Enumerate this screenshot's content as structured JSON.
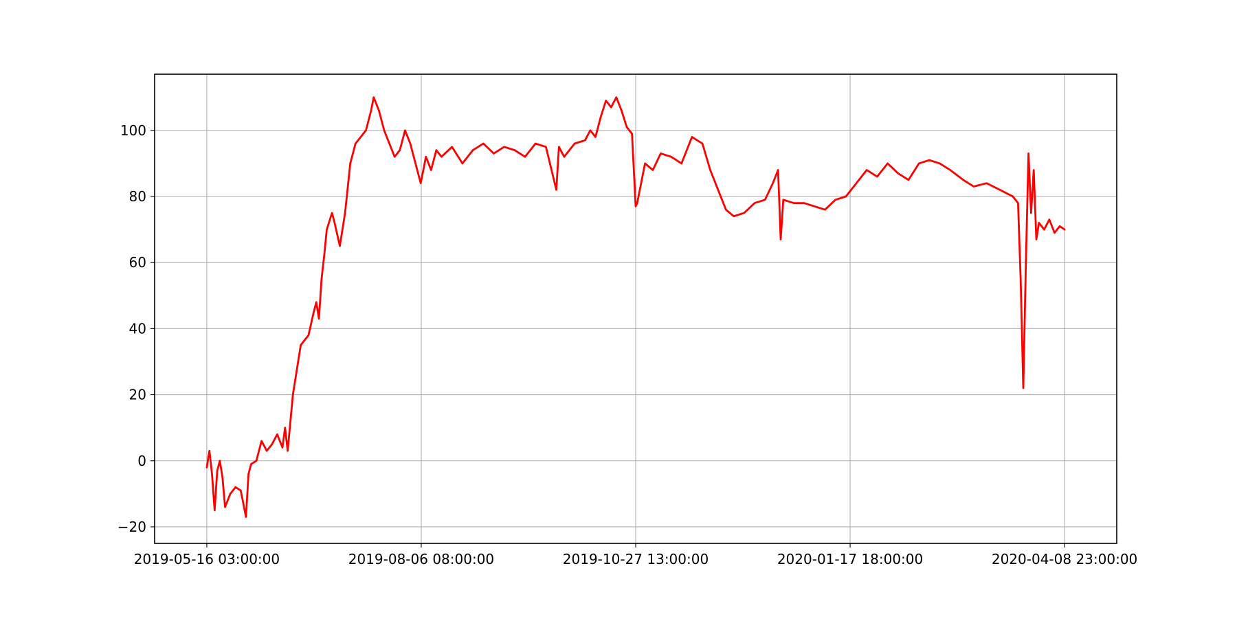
{
  "chart_data": {
    "type": "line",
    "title": "",
    "xlabel": "",
    "ylabel": "",
    "x_ticks": [
      "2019-05-16 03:00:00",
      "2019-08-06 08:00:00",
      "2019-10-27 13:00:00",
      "2020-01-17 18:00:00",
      "2020-04-08 23:00:00"
    ],
    "xlim": [
      "2019-04-26 03:00:00",
      "2020-04-28 23:00:00"
    ],
    "ylim": [
      -25,
      117
    ],
    "y_ticks": [
      -20,
      0,
      20,
      40,
      60,
      80,
      100
    ],
    "grid": true,
    "legend": "none",
    "series": [
      {
        "color": "#ff0000",
        "x": [
          "2019-05-16 03:00:00",
          "2019-05-17 03:00:00",
          "2019-05-18 03:00:00",
          "2019-05-19 03:00:00",
          "2019-05-20 03:00:00",
          "2019-05-21 03:00:00",
          "2019-05-22 03:00:00",
          "2019-05-23 03:00:00",
          "2019-05-25 03:00:00",
          "2019-05-27 03:00:00",
          "2019-05-29 03:00:00",
          "2019-05-31 03:00:00",
          "2019-06-01 03:00:00",
          "2019-06-02 03:00:00",
          "2019-06-04 03:00:00",
          "2019-06-06 03:00:00",
          "2019-06-08 03:00:00",
          "2019-06-10 03:00:00",
          "2019-06-12 03:00:00",
          "2019-06-14 03:00:00",
          "2019-06-15 03:00:00",
          "2019-06-16 03:00:00",
          "2019-06-18 03:00:00",
          "2019-06-21 03:00:00",
          "2019-06-24 03:00:00",
          "2019-06-26 03:00:00",
          "2019-06-27 03:00:00",
          "2019-06-28 03:00:00",
          "2019-06-29 03:00:00",
          "2019-06-30 03:00:00",
          "2019-07-01 03:00:00",
          "2019-07-03 03:00:00",
          "2019-07-04 03:00:00",
          "2019-07-06 03:00:00",
          "2019-07-08 03:00:00",
          "2019-07-10 03:00:00",
          "2019-07-12 03:00:00",
          "2019-07-14 03:00:00",
          "2019-07-16 03:00:00",
          "2019-07-18 03:00:00",
          "2019-07-19 03:00:00",
          "2019-07-21 03:00:00",
          "2019-07-23 03:00:00",
          "2019-07-25 03:00:00",
          "2019-07-27 03:00:00",
          "2019-07-29 03:00:00",
          "2019-07-31 03:00:00",
          "2019-08-02 03:00:00",
          "2019-08-04 03:00:00",
          "2019-08-06 03:00:00",
          "2019-08-08 03:00:00",
          "2019-08-10 03:00:00",
          "2019-08-12 03:00:00",
          "2019-08-14 03:00:00",
          "2019-08-18 03:00:00",
          "2019-08-22 03:00:00",
          "2019-08-26 03:00:00",
          "2019-08-30 03:00:00",
          "2019-09-03 03:00:00",
          "2019-09-07 03:00:00",
          "2019-09-11 03:00:00",
          "2019-09-15 03:00:00",
          "2019-09-19 03:00:00",
          "2019-09-23 03:00:00",
          "2019-09-27 03:00:00",
          "2019-09-28 03:00:00",
          "2019-09-30 03:00:00",
          "2019-10-04 03:00:00",
          "2019-10-08 03:00:00",
          "2019-10-10 03:00:00",
          "2019-10-12 03:00:00",
          "2019-10-14 03:00:00",
          "2019-10-16 03:00:00",
          "2019-10-18 03:00:00",
          "2019-10-20 03:00:00",
          "2019-10-22 03:00:00",
          "2019-10-24 03:00:00",
          "2019-10-26 03:00:00",
          "2019-10-27 13:00:00",
          "2019-10-28 03:00:00",
          "2019-10-31 03:00:00",
          "2019-11-03 03:00:00",
          "2019-11-06 03:00:00",
          "2019-11-10 03:00:00",
          "2019-11-14 03:00:00",
          "2019-11-18 03:00:00",
          "2019-11-22 03:00:00",
          "2019-11-25 03:00:00",
          "2019-11-28 03:00:00",
          "2019-12-01 03:00:00",
          "2019-12-04 03:00:00",
          "2019-12-08 03:00:00",
          "2019-12-12 03:00:00",
          "2019-12-16 03:00:00",
          "2019-12-19 03:00:00",
          "2019-12-21 03:00:00",
          "2019-12-22 03:00:00",
          "2019-12-23 03:00:00",
          "2019-12-27 03:00:00",
          "2019-12-31 03:00:00",
          "2020-01-04 03:00:00",
          "2020-01-08 03:00:00",
          "2020-01-12 03:00:00",
          "2020-01-16 03:00:00",
          "2020-01-20 03:00:00",
          "2020-01-24 03:00:00",
          "2020-01-28 03:00:00",
          "2020-02-01 03:00:00",
          "2020-02-05 03:00:00",
          "2020-02-09 03:00:00",
          "2020-02-13 03:00:00",
          "2020-02-17 03:00:00",
          "2020-02-21 03:00:00",
          "2020-02-25 03:00:00",
          "2020-03-01 03:00:00",
          "2020-03-05 03:00:00",
          "2020-03-10 03:00:00",
          "2020-03-15 03:00:00",
          "2020-03-20 03:00:00",
          "2020-03-22 03:00:00",
          "2020-03-23 03:00:00",
          "2020-03-24 03:00:00",
          "2020-03-25 03:00:00",
          "2020-03-26 03:00:00",
          "2020-03-27 03:00:00",
          "2020-03-28 03:00:00",
          "2020-03-29 03:00:00",
          "2020-03-30 03:00:00",
          "2020-04-01 03:00:00",
          "2020-04-03 03:00:00",
          "2020-04-05 03:00:00",
          "2020-04-07 03:00:00",
          "2020-04-08 23:00:00"
        ],
        "y": [
          -2,
          3,
          -4,
          -15,
          -3,
          0,
          -5,
          -14,
          -10,
          -8,
          -9,
          -17,
          -4,
          -1,
          0,
          6,
          3,
          5,
          8,
          4,
          10,
          3,
          20,
          35,
          38,
          45,
          48,
          43,
          55,
          62,
          70,
          75,
          72,
          65,
          75,
          90,
          96,
          98,
          100,
          106,
          110,
          106,
          100,
          96,
          92,
          94,
          100,
          96,
          90,
          84,
          92,
          88,
          94,
          92,
          95,
          90,
          94,
          96,
          93,
          95,
          94,
          92,
          96,
          95,
          82,
          95,
          92,
          96,
          97,
          100,
          98,
          104,
          109,
          107,
          110,
          106,
          101,
          99,
          77,
          78,
          90,
          88,
          93,
          92,
          90,
          98,
          96,
          88,
          82,
          76,
          74,
          75,
          78,
          79,
          84,
          88,
          67,
          79,
          78,
          78,
          77,
          76,
          79,
          80,
          84,
          88,
          86,
          90,
          87,
          85,
          90,
          91,
          90,
          88,
          85,
          83,
          84,
          82,
          80,
          78,
          55,
          22,
          60,
          93,
          75,
          88,
          67,
          72,
          70,
          73,
          69,
          71,
          70
        ]
      }
    ]
  }
}
